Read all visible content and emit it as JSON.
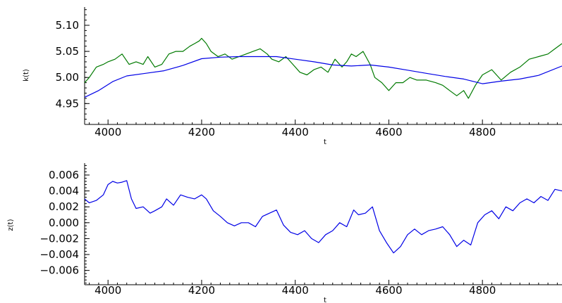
{
  "chart_data": [
    {
      "type": "line",
      "xlabel": "t",
      "ylabel": "k(t)",
      "xlim": [
        3950,
        4970
      ],
      "ylim": [
        4.91,
        5.135
      ],
      "x_ticks": [
        4000,
        4200,
        4400,
        4600,
        4800
      ],
      "y_ticks": [
        4.95,
        5.0,
        5.05,
        5.1
      ],
      "x_tick_labels": [
        "4000",
        "4200",
        "4400",
        "4600",
        "4800"
      ],
      "y_tick_labels": [
        "4.95",
        "5.00",
        "5.05",
        "5.10"
      ],
      "series": [
        {
          "color": "#007a00",
          "x": [
            3950,
            3960,
            3975,
            3990,
            4000,
            4015,
            4030,
            4045,
            4060,
            4075,
            4085,
            4100,
            4115,
            4130,
            4145,
            4160,
            4175,
            4185,
            4195,
            4200,
            4210,
            4220,
            4235,
            4250,
            4265,
            4280,
            4295,
            4310,
            4325,
            4340,
            4350,
            4365,
            4380,
            4395,
            4410,
            4425,
            4440,
            4455,
            4470,
            4485,
            4500,
            4510,
            4520,
            4530,
            4545,
            4560,
            4570,
            4585,
            4600,
            4615,
            4630,
            4645,
            4660,
            4680,
            4700,
            4715,
            4730,
            4745,
            4760,
            4770,
            4785,
            4800,
            4820,
            4840,
            4860,
            4880,
            4900,
            4920,
            4940,
            4955,
            4970
          ],
          "y": [
            4.99,
            5.0,
            5.02,
            5.025,
            5.03,
            5.035,
            5.045,
            5.025,
            5.03,
            5.025,
            5.04,
            5.02,
            5.025,
            5.045,
            5.05,
            5.05,
            5.06,
            5.065,
            5.07,
            5.075,
            5.065,
            5.05,
            5.04,
            5.045,
            5.035,
            5.04,
            5.045,
            5.05,
            5.055,
            5.045,
            5.035,
            5.03,
            5.04,
            5.025,
            5.01,
            5.005,
            5.015,
            5.02,
            5.01,
            5.035,
            5.02,
            5.03,
            5.045,
            5.04,
            5.05,
            5.025,
            5.0,
            4.99,
            4.975,
            4.99,
            4.99,
            5.0,
            4.995,
            4.995,
            4.99,
            4.985,
            4.975,
            4.965,
            4.975,
            4.96,
            4.985,
            5.005,
            5.015,
            4.995,
            5.01,
            5.02,
            5.035,
            5.04,
            5.045,
            5.055,
            5.065
          ]
        },
        {
          "color": "#0000e6",
          "x": [
            3950,
            3980,
            4010,
            4040,
            4080,
            4120,
            4160,
            4200,
            4240,
            4280,
            4320,
            4360,
            4400,
            4440,
            4480,
            4520,
            4560,
            4600,
            4640,
            4680,
            4720,
            4760,
            4800,
            4840,
            4880,
            4920,
            4970
          ],
          "y": [
            4.962,
            4.975,
            4.992,
            5.003,
            5.008,
            5.013,
            5.023,
            5.036,
            5.039,
            5.04,
            5.04,
            5.04,
            5.035,
            5.03,
            5.024,
            5.022,
            5.024,
            5.02,
            5.014,
            5.008,
            5.002,
            4.997,
            4.988,
            4.993,
            4.997,
            5.004,
            5.022
          ]
        }
      ]
    },
    {
      "type": "line",
      "xlabel": "t",
      "ylabel": "z(t)",
      "xlim": [
        3950,
        4970
      ],
      "ylim": [
        -0.0078,
        0.0075
      ],
      "x_ticks": [
        4000,
        4200,
        4400,
        4600,
        4800
      ],
      "y_ticks": [
        -0.006,
        -0.004,
        -0.002,
        0.0,
        0.002,
        0.004,
        0.006
      ],
      "x_tick_labels": [
        "4000",
        "4200",
        "4400",
        "4600",
        "4800"
      ],
      "y_tick_labels": [
        "−0.006",
        "−0.004",
        "−0.002",
        "0.000",
        "0.002",
        "0.004",
        "0.006"
      ],
      "series": [
        {
          "color": "#0000e6",
          "x": [
            3950,
            3960,
            3975,
            3990,
            4000,
            4010,
            4020,
            4030,
            4040,
            4050,
            4060,
            4075,
            4090,
            4100,
            4115,
            4125,
            4140,
            4155,
            4170,
            4185,
            4200,
            4210,
            4225,
            4240,
            4255,
            4270,
            4285,
            4300,
            4315,
            4330,
            4345,
            4360,
            4375,
            4390,
            4405,
            4420,
            4435,
            4450,
            4465,
            4480,
            4495,
            4510,
            4525,
            4535,
            4550,
            4565,
            4580,
            4595,
            4610,
            4625,
            4640,
            4655,
            4670,
            4685,
            4700,
            4715,
            4730,
            4745,
            4760,
            4775,
            4790,
            4805,
            4820,
            4835,
            4850,
            4865,
            4880,
            4895,
            4910,
            4925,
            4940,
            4955,
            4970
          ],
          "y": [
            0.003,
            0.0025,
            0.0028,
            0.0035,
            0.0048,
            0.0052,
            0.005,
            0.0051,
            0.0053,
            0.003,
            0.0018,
            0.002,
            0.0012,
            0.0015,
            0.002,
            0.003,
            0.0022,
            0.0035,
            0.0032,
            0.003,
            0.0035,
            0.003,
            0.0015,
            0.0008,
            0.0,
            -0.0004,
            0.0,
            0.0,
            -0.0005,
            0.0008,
            0.0012,
            0.0016,
            -0.0003,
            -0.0012,
            -0.0015,
            -0.001,
            -0.002,
            -0.0025,
            -0.0015,
            -0.001,
            0.0,
            -0.0005,
            0.0016,
            0.001,
            0.0012,
            0.002,
            -0.001,
            -0.0025,
            -0.0038,
            -0.003,
            -0.0015,
            -0.0008,
            -0.0015,
            -0.001,
            -0.0008,
            -0.0005,
            -0.0015,
            -0.003,
            -0.0022,
            -0.0028,
            0.0,
            0.001,
            0.0015,
            0.0005,
            0.002,
            0.0015,
            0.0025,
            0.003,
            0.0025,
            0.0033,
            0.0028,
            0.0042,
            0.004
          ]
        }
      ]
    }
  ]
}
